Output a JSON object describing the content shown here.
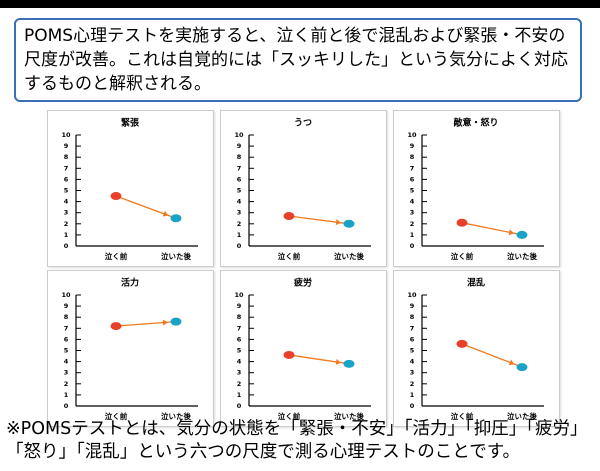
{
  "header": {
    "text": "POMS心理テストを実施すると、泣く前と後で混乱および緊張・不安の尺度が改善。これは自覚的には「スッキリした」という気分によく対応するものと解釈される。"
  },
  "footnote": "※POMSテストとは、気分の状態を「緊張・不安」「活力」「抑圧」「疲労」「怒り」「混乱」という六つの尺度で測る心理テストのことです。",
  "chart_data": [
    {
      "type": "line",
      "title": "緊張",
      "categories": [
        "泣く前",
        "泣いた後"
      ],
      "series": [
        {
          "color": "#f07a20",
          "point_colors": [
            "#e8402a",
            "#1aa3c8"
          ],
          "values": [
            4.5,
            2.5
          ]
        }
      ],
      "ylim": [
        0,
        10
      ],
      "yticks": [
        0,
        1,
        2,
        3,
        4,
        5,
        6,
        7,
        8,
        9,
        10
      ]
    },
    {
      "type": "line",
      "title": "うつ",
      "categories": [
        "泣く前",
        "泣いた後"
      ],
      "series": [
        {
          "color": "#f07a20",
          "point_colors": [
            "#e8402a",
            "#1aa3c8"
          ],
          "values": [
            2.7,
            2.0
          ]
        }
      ],
      "ylim": [
        0,
        10
      ],
      "yticks": [
        0,
        1,
        2,
        3,
        4,
        5,
        6,
        7,
        8,
        9,
        10
      ]
    },
    {
      "type": "line",
      "title": "敵意・怒り",
      "categories": [
        "泣く前",
        "泣いた後"
      ],
      "series": [
        {
          "color": "#f07a20",
          "point_colors": [
            "#e8402a",
            "#1aa3c8"
          ],
          "values": [
            2.1,
            1.0
          ]
        }
      ],
      "ylim": [
        0,
        10
      ],
      "yticks": [
        0,
        1,
        2,
        3,
        4,
        5,
        6,
        7,
        8,
        9,
        10
      ]
    },
    {
      "type": "line",
      "title": "活力",
      "categories": [
        "泣く前",
        "泣いた後"
      ],
      "series": [
        {
          "color": "#f07a20",
          "point_colors": [
            "#e8402a",
            "#1aa3c8"
          ],
          "values": [
            7.2,
            7.6
          ]
        }
      ],
      "ylim": [
        0,
        10
      ],
      "yticks": [
        0,
        1,
        2,
        3,
        4,
        5,
        6,
        7,
        8,
        9,
        10
      ]
    },
    {
      "type": "line",
      "title": "疲労",
      "categories": [
        "泣く前",
        "泣いた後"
      ],
      "series": [
        {
          "color": "#f07a20",
          "point_colors": [
            "#e8402a",
            "#1aa3c8"
          ],
          "values": [
            4.6,
            3.8
          ]
        }
      ],
      "ylim": [
        0,
        10
      ],
      "yticks": [
        0,
        1,
        2,
        3,
        4,
        5,
        6,
        7,
        8,
        9,
        10
      ]
    },
    {
      "type": "line",
      "title": "混乱",
      "categories": [
        "泣く前",
        "泣いた後"
      ],
      "series": [
        {
          "color": "#f07a20",
          "point_colors": [
            "#e8402a",
            "#1aa3c8"
          ],
          "values": [
            5.6,
            3.5
          ]
        }
      ],
      "ylim": [
        0,
        10
      ],
      "yticks": [
        0,
        1,
        2,
        3,
        4,
        5,
        6,
        7,
        8,
        9,
        10
      ]
    }
  ]
}
